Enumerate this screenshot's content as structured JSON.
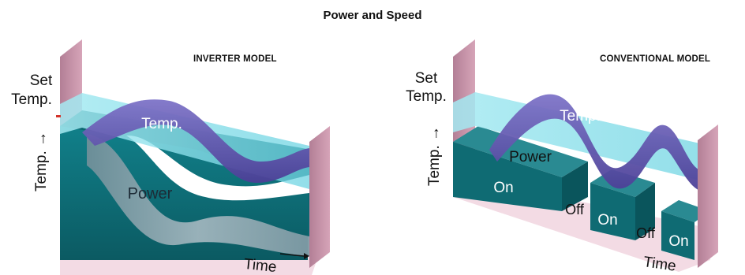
{
  "title": "Power and Speed",
  "colors": {
    "wall": "#c690a6",
    "floor": "#f3dbe4",
    "teal": "#0f6f78",
    "cyan": "#8fe0ea",
    "purple": "#6f63b8",
    "gray": "#8aa3ac"
  },
  "inverter": {
    "model_label": "INVERTER MODEL",
    "set_temp": [
      "Set",
      "Temp."
    ],
    "temp_axis": "Temp. →",
    "temp_label": "Temp.",
    "power_label": "Power",
    "time_label": "Time"
  },
  "conventional": {
    "model_label": "CONVENTIONAL MODEL",
    "set_temp": [
      "Set",
      "Temp."
    ],
    "temp_axis": "Temp. →",
    "temp_label": "Temp.",
    "power_label": "Power",
    "time_label": "Time",
    "blocks": [
      "On",
      "Off",
      "On",
      "Off",
      "On"
    ]
  }
}
